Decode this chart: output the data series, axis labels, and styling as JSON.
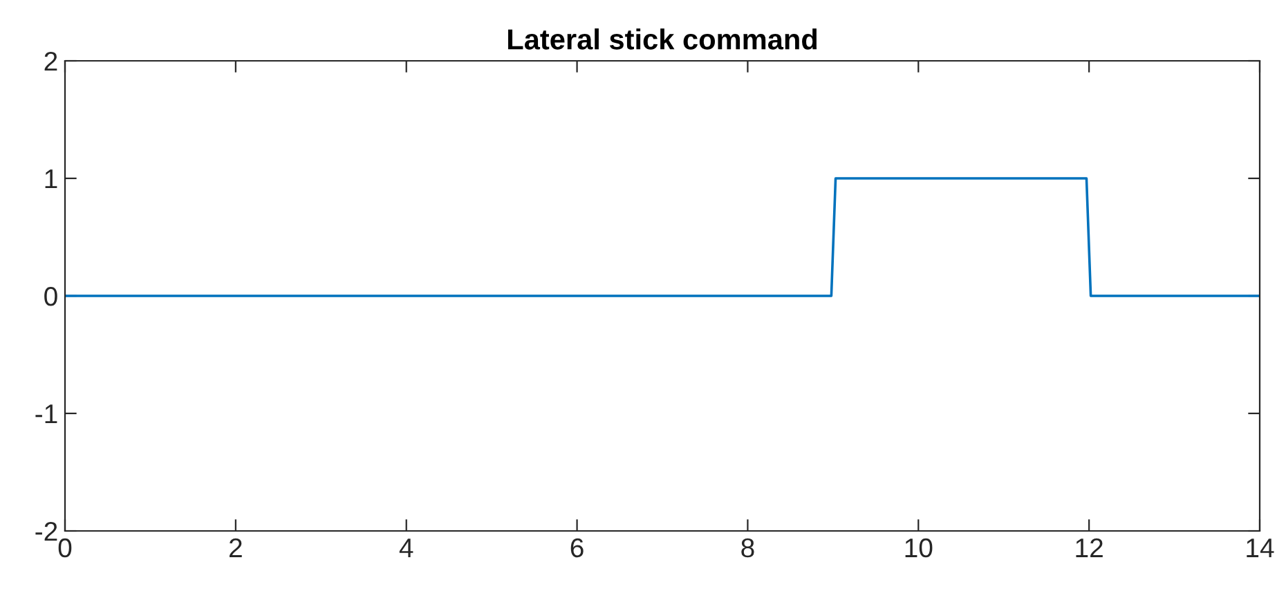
{
  "chart_data": {
    "type": "line",
    "title": "Lateral stick command",
    "x": [
      0,
      8.98,
      9.03,
      11.97,
      12.02,
      14
    ],
    "series": [
      {
        "color": "#0072bd",
        "values": [
          0,
          0,
          1,
          1,
          0,
          0
        ]
      }
    ],
    "xlim": [
      0,
      14
    ],
    "xticks": [
      0,
      2,
      4,
      6,
      8,
      10,
      12,
      14
    ],
    "ylim": [
      -2,
      2
    ],
    "yticks": [
      -2,
      -1,
      0,
      1,
      2
    ],
    "grid": false,
    "legend": false,
    "marker": "none",
    "line_style": "solid"
  }
}
